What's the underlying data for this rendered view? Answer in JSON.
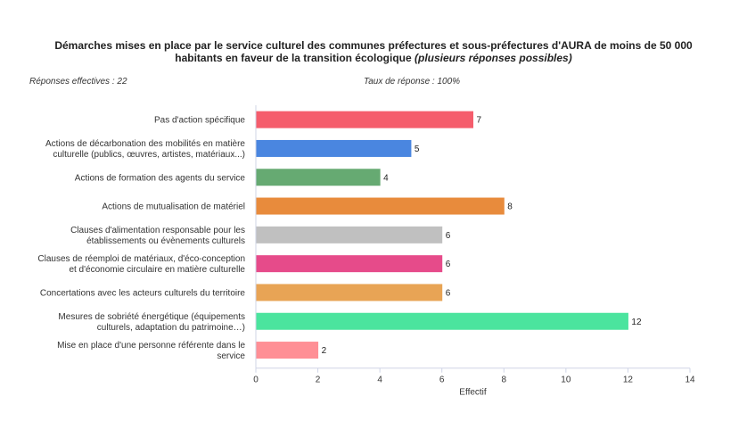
{
  "chart_data": {
    "type": "bar",
    "orientation": "horizontal",
    "title_line1": "Démarches mises en place par le service culturel des communes préfectures et sous-préfectures d'AURA de moins de 50 000",
    "title_line2": "habitants en faveur de la transition écologique",
    "title_suffix": "(plusieurs réponses possibles)",
    "responses_label": "Réponses effectives : 22",
    "rate_label": "Taux de réponse : 100%",
    "xlabel": "Effectif",
    "xlim": [
      0,
      14
    ],
    "xticks": [
      0,
      2,
      4,
      6,
      8,
      10,
      12,
      14
    ],
    "grid": false,
    "categories": [
      [
        "Pas d'action spécifique"
      ],
      [
        "Actions de décarbonation des mobilités en matière",
        "culturelle (publics, œuvres, artistes, matériaux...)"
      ],
      [
        "Actions de formation des agents du service"
      ],
      [
        "Actions de mutualisation de matériel"
      ],
      [
        "Clauses d'alimentation responsable pour les",
        "établissements ou évènements culturels"
      ],
      [
        "Clauses de réemploi de matériaux, d'éco-conception",
        "et d'économie circulaire en matière culturelle"
      ],
      [
        "Concertations avec les acteurs culturels du territoire"
      ],
      [
        "Mesures de sobriété énergétique (équipements",
        "culturels, adaptation du patrimoine…)"
      ],
      [
        "Mise en place d'une personne référente dans le",
        "service"
      ]
    ],
    "values": [
      7,
      5,
      4,
      8,
      6,
      6,
      6,
      12,
      2
    ],
    "colors": [
      "#f55d6c",
      "#4a86e0",
      "#66aa72",
      "#e88b3c",
      "#c0c0c0",
      "#e64b8a",
      "#e8a455",
      "#4be49e",
      "#ff8f95"
    ]
  }
}
